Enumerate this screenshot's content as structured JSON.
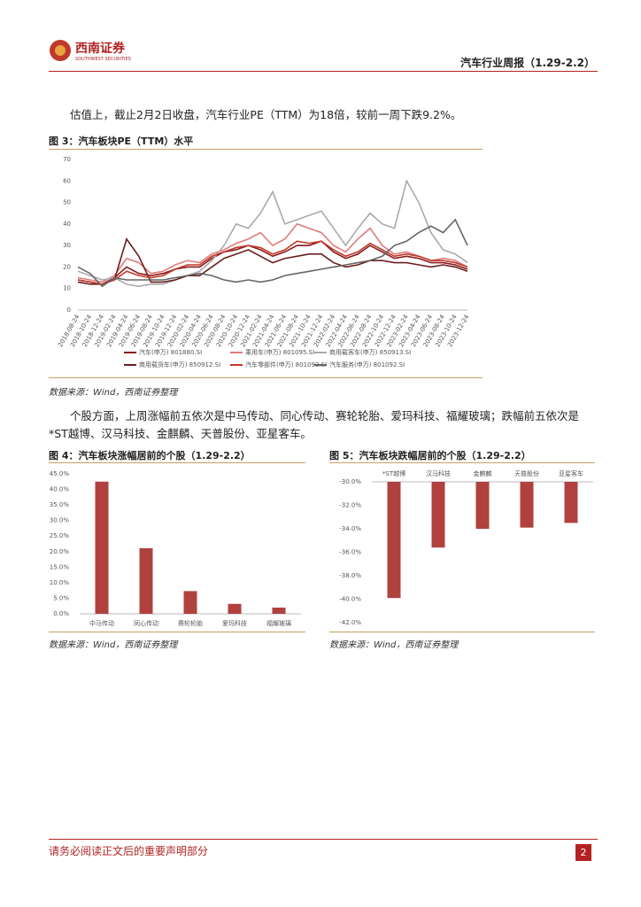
{
  "header": {
    "logo": "西南证券",
    "logo_en": "SOUTHWEST SECURITIES",
    "title": "汽车行业周报（1.29-2.2）"
  },
  "body": {
    "p1": "估值上，截止2月2日收盘，汽车行业PE（TTM）为18倍，较前一周下跌9.2%。",
    "p2": "个股方面，上周涨幅前五依次是中马传动、同心传动、赛轮轮胎、爱玛科技、福耀玻璃；跌幅前五依次是*ST越博、汉马科技、金麒麟、天普股份、亚星客车。"
  },
  "chart_data": [
    {
      "type": "line",
      "title": "图 3：汽车板块PE（TTM）水平",
      "source": "数据来源：Wind，西南证券整理",
      "x": [
        "2018-08-24",
        "2018-10-24",
        "2018-12-24",
        "2019-02-24",
        "2019-04-24",
        "2019-06-24",
        "2019-08-24",
        "2019-10-24",
        "2019-12-24",
        "2020-02-24",
        "2020-04-24",
        "2020-06-24",
        "2020-08-24",
        "2020-10-24",
        "2020-12-24",
        "2021-02-24",
        "2021-04-24",
        "2021-06-24",
        "2021-08-24",
        "2021-10-24",
        "2021-12-24",
        "2022-02-24",
        "2022-04-24",
        "2022-06-24",
        "2022-08-24",
        "2022-10-24",
        "2022-12-24",
        "2023-02-24",
        "2023-04-24",
        "2023-06-24",
        "2023-08-24",
        "2023-10-24",
        "2023-12-24"
      ],
      "ylim": [
        0,
        70
      ],
      "yticks": [
        0,
        10,
        20,
        30,
        40,
        50,
        60,
        70
      ],
      "series": [
        {
          "name": "汽车(申万) 801880.SI",
          "color": "#8b1a1a",
          "values": [
            14,
            13,
            12,
            15,
            20,
            17,
            16,
            17,
            19,
            20,
            20,
            24,
            27,
            28,
            30,
            28,
            25,
            27,
            30,
            30,
            32,
            27,
            24,
            26,
            30,
            27,
            24,
            25,
            24,
            22,
            22,
            21,
            19
          ]
        },
        {
          "name": "乘用车(申万) 801095.SI",
          "color": "#e07b7b",
          "values": [
            15,
            14,
            13,
            16,
            24,
            22,
            17,
            18,
            21,
            23,
            22,
            26,
            28,
            31,
            33,
            36,
            30,
            33,
            40,
            38,
            36,
            30,
            27,
            33,
            38,
            30,
            26,
            27,
            25,
            23,
            24,
            23,
            20
          ]
        },
        {
          "name": "商用载客车(申万) 850913.SI",
          "color": "#aaaaaa",
          "values": [
            18,
            16,
            14,
            15,
            12,
            11,
            12,
            12,
            14,
            16,
            18,
            23,
            30,
            40,
            38,
            45,
            55,
            40,
            42,
            44,
            46,
            38,
            30,
            38,
            45,
            40,
            38,
            60,
            50,
            36,
            28,
            26,
            22
          ]
        },
        {
          "name": "商用载货车(申万) 850912.SI",
          "color": "#6b1f1f",
          "values": [
            13,
            12,
            12,
            14,
            33,
            25,
            13,
            13,
            14,
            16,
            16,
            20,
            24,
            26,
            28,
            25,
            22,
            24,
            25,
            26,
            26,
            22,
            20,
            21,
            23,
            23,
            22,
            22,
            21,
            20,
            21,
            20,
            18
          ]
        },
        {
          "name": "汽车零部件(申万) 801093.SI",
          "color": "#c0392b",
          "values": [
            14,
            13,
            12,
            14,
            18,
            16,
            15,
            16,
            19,
            21,
            21,
            25,
            27,
            29,
            30,
            29,
            26,
            28,
            32,
            31,
            32,
            28,
            25,
            27,
            31,
            28,
            25,
            26,
            25,
            23,
            23,
            22,
            20
          ]
        },
        {
          "name": "汽车服务(申万) 801092.SI",
          "color": "#666666",
          "values": [
            20,
            17,
            11,
            15,
            14,
            14,
            14,
            14,
            15,
            16,
            17,
            16,
            14,
            13,
            14,
            13,
            14,
            16,
            17,
            18,
            19,
            20,
            21,
            22,
            23,
            25,
            30,
            32,
            36,
            39,
            36,
            42,
            30
          ]
        }
      ]
    },
    {
      "type": "bar",
      "title": "图 4：汽车板块涨幅居前的个股（1.29-2.2）",
      "source": "数据来源：Wind，西南证券整理",
      "color": "#b0413e",
      "xaxis": "bottom",
      "categories": [
        "中马传动",
        "同心传动",
        "赛轮轮胎",
        "爱玛科技",
        "福耀玻璃"
      ],
      "values": [
        42.5,
        21.1,
        7.3,
        3.2,
        2.0
      ],
      "ylim": [
        0,
        45
      ],
      "yticks": [
        {
          "value": 0,
          "label": "0.0%"
        },
        {
          "value": 5,
          "label": "5.0%"
        },
        {
          "value": 10,
          "label": "10.0%"
        },
        {
          "value": 15,
          "label": "15.0%"
        },
        {
          "value": 20,
          "label": "20.0%"
        },
        {
          "value": 25,
          "label": "25.0%"
        },
        {
          "value": 30,
          "label": "30.0%"
        },
        {
          "value": 35,
          "label": "35.0%"
        },
        {
          "value": 40,
          "label": "40.0%"
        },
        {
          "value": 45,
          "label": "45.0%"
        }
      ]
    },
    {
      "type": "bar",
      "title": "图 5：汽车板块跌幅居前的个股（1.29-2.2）",
      "source": "数据来源：Wind，西南证券整理",
      "color": "#b0413e",
      "xaxis": "top",
      "categories": [
        "*ST越博",
        "汉马科技",
        "金麒麟",
        "天普股份",
        "亚星客车"
      ],
      "values": [
        -39.9,
        -35.6,
        -34.0,
        -33.9,
        -33.5
      ],
      "ylim": [
        -42,
        -30
      ],
      "yticks": [
        {
          "value": -30,
          "label": "-30.0%"
        },
        {
          "value": -32,
          "label": "-32.0%"
        },
        {
          "value": -34,
          "label": "-34.0%"
        },
        {
          "value": -36,
          "label": "-36.0%"
        },
        {
          "value": -38,
          "label": "-38.0%"
        },
        {
          "value": -40,
          "label": "-40.0%"
        },
        {
          "value": -42,
          "label": "-42.0%"
        }
      ]
    }
  ],
  "footer": {
    "notice": "请务必阅读正文后的重要声明部分",
    "page": "2"
  }
}
